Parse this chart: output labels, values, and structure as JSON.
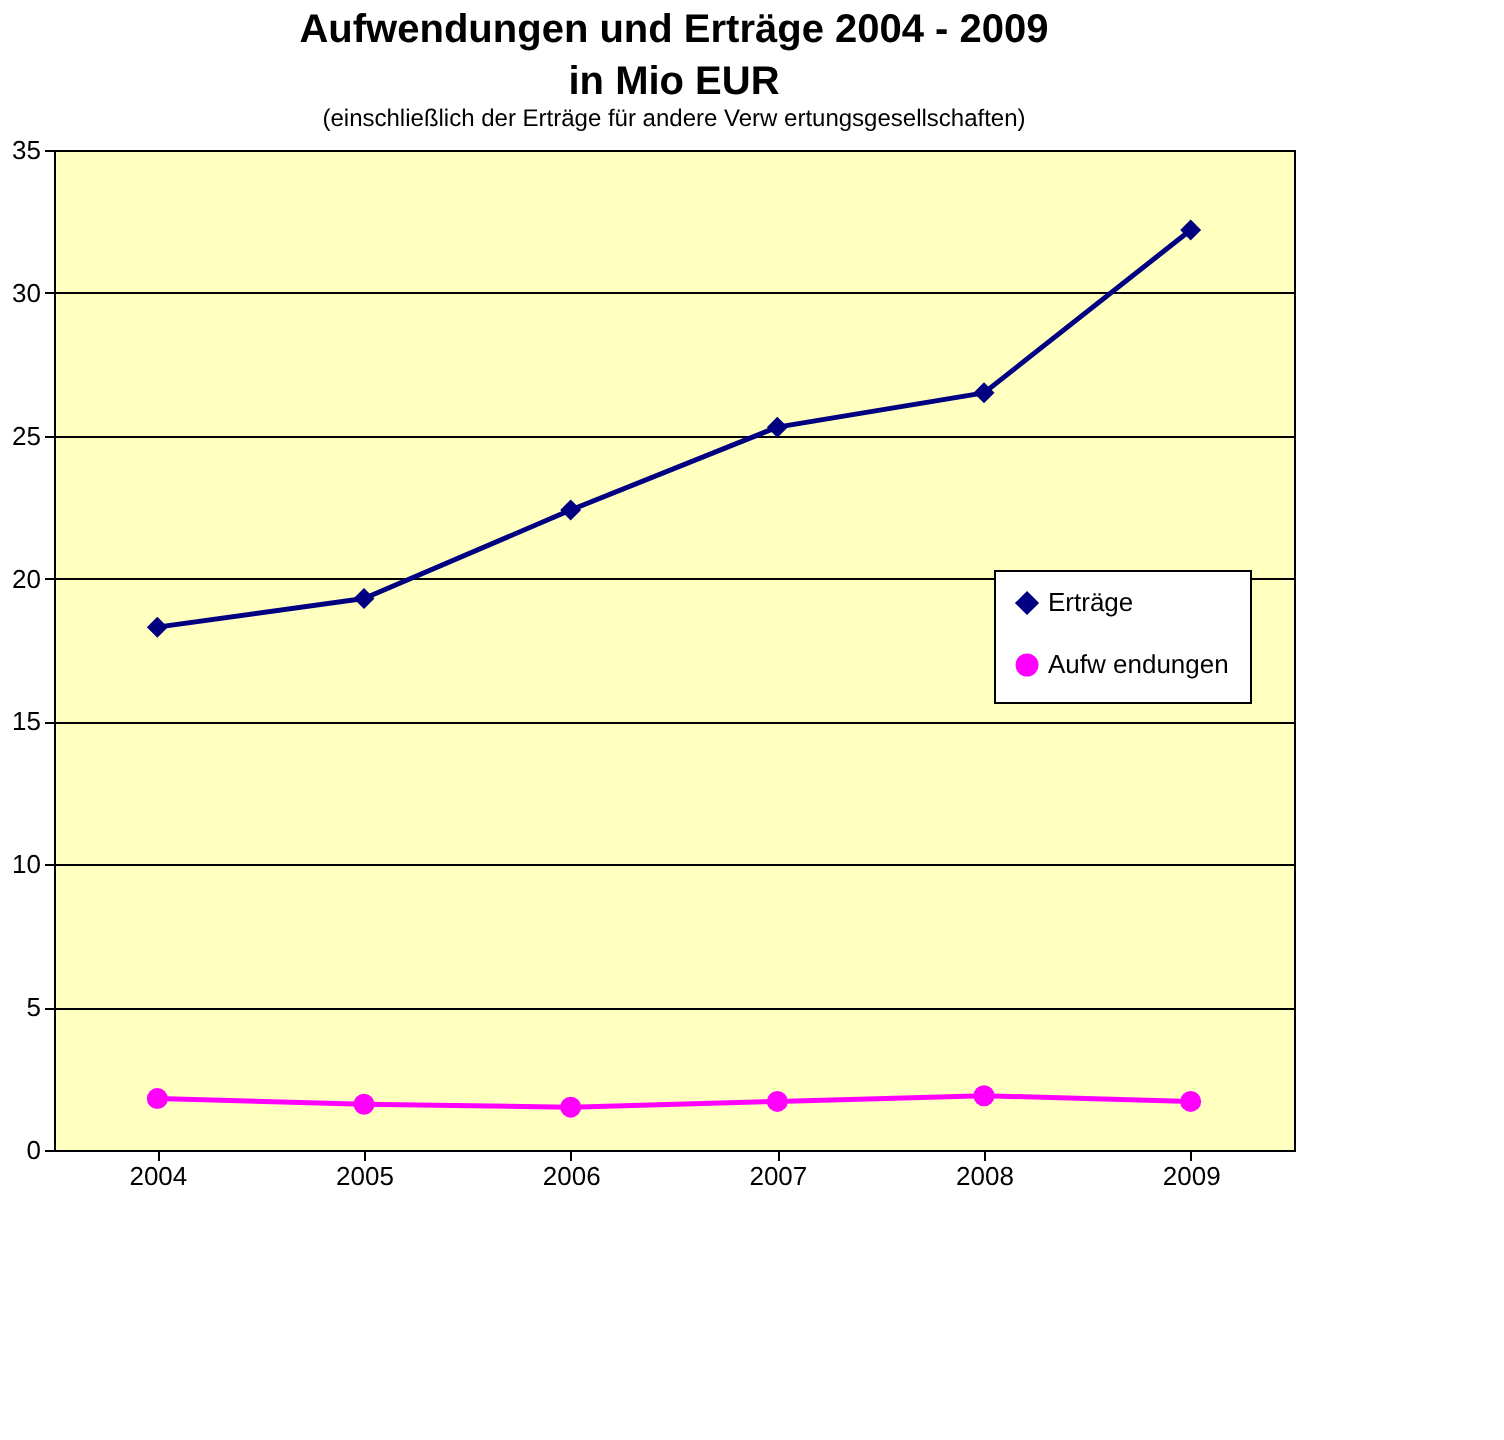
{
  "chart_data": {
    "type": "line",
    "title": "Aufwendungen und Erträge 2004 - 2009",
    "subtitle": "in Mio EUR",
    "annotations": [
      "(einschließlich der Erträge für andere Verw ertungsgesellschaften)"
    ],
    "categories": [
      "2004",
      "2005",
      "2006",
      "2007",
      "2008",
      "2009"
    ],
    "series": [
      {
        "name": "Erträge",
        "color": "#000080",
        "marker": "diamond",
        "values": [
          18.3,
          19.3,
          22.4,
          25.3,
          26.5,
          32.2
        ]
      },
      {
        "name": "Aufw endungen",
        "color": "#ff00ff",
        "marker": "circle",
        "values": [
          1.8,
          1.6,
          1.5,
          1.7,
          1.9,
          1.7
        ]
      }
    ],
    "ylim": [
      0,
      35
    ],
    "yticks": [
      0,
      5,
      10,
      15,
      20,
      25,
      30,
      35
    ],
    "grid": "y",
    "legend": "right"
  }
}
